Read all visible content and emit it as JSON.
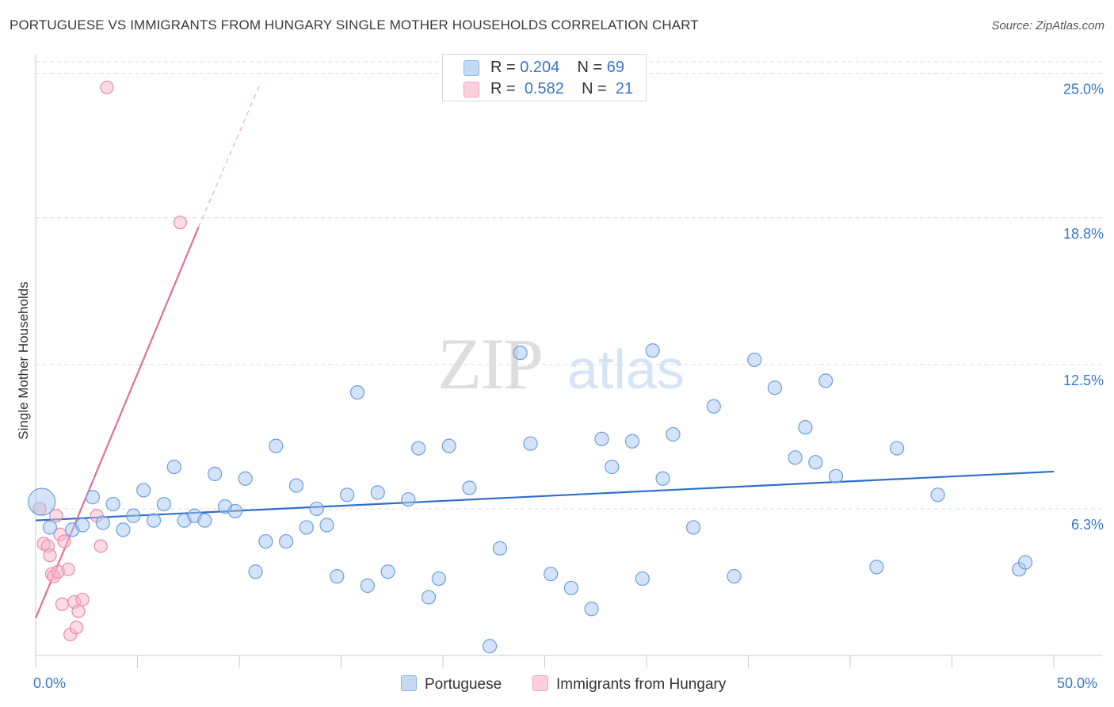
{
  "title": "PORTUGUESE VS IMMIGRANTS FROM HUNGARY SINGLE MOTHER HOUSEHOLDS CORRELATION CHART",
  "source": "Source: ZipAtlas.com",
  "watermark": {
    "zip": "ZIP",
    "atlas": "atlas"
  },
  "legend": {
    "portuguese": {
      "r_label": "R =",
      "r_value": "0.204",
      "n_label": "N =",
      "n_value": "69"
    },
    "hungary": {
      "r_label": "R =",
      "r_value": "0.582",
      "n_label": "N =",
      "n_value": "21"
    }
  },
  "colors": {
    "blue_fill": "#a9c8ef",
    "blue_stroke": "#6c9fdc",
    "blue_line": "#2f6fcc",
    "pink_fill": "#f7b8cb",
    "pink_stroke": "#ea8aa8",
    "pink_line": "#e0709a",
    "tick_label": "#3a78c9",
    "grid": "#dddddd"
  },
  "chart_data": {
    "type": "scatter",
    "title": "PORTUGUESE VS IMMIGRANTS FROM HUNGARY SINGLE MOTHER HOUSEHOLDS CORRELATION CHART",
    "xlabel": "",
    "ylabel": "Single Mother Households",
    "xlim": [
      0,
      50
    ],
    "ylim": [
      0,
      25.5
    ],
    "x_tick_labels": [
      {
        "value": 0,
        "label": "0.0%"
      },
      {
        "value": 50,
        "label": "50.0%"
      }
    ],
    "y_tick_labels": [
      {
        "value": 6.3,
        "label": "6.3%"
      },
      {
        "value": 12.5,
        "label": "12.5%"
      },
      {
        "value": 18.8,
        "label": "18.8%"
      },
      {
        "value": 25.0,
        "label": "25.0%"
      }
    ],
    "grid": true,
    "series": [
      {
        "name": "Portuguese",
        "color": "blue",
        "trend": {
          "x": [
            0,
            50
          ],
          "y": [
            5.8,
            7.9
          ],
          "dashed_extension": false
        },
        "points": [
          [
            0.3,
            6.6,
            "large"
          ],
          [
            0.7,
            5.5
          ],
          [
            1.8,
            5.4
          ],
          [
            2.3,
            5.6
          ],
          [
            2.8,
            6.8
          ],
          [
            3.3,
            5.7
          ],
          [
            3.8,
            6.5
          ],
          [
            4.3,
            5.4
          ],
          [
            4.8,
            6.0
          ],
          [
            5.3,
            7.1
          ],
          [
            5.8,
            5.8
          ],
          [
            6.3,
            6.5
          ],
          [
            6.8,
            8.1
          ],
          [
            7.3,
            5.8
          ],
          [
            7.8,
            6.0
          ],
          [
            8.3,
            5.8
          ],
          [
            8.8,
            7.8
          ],
          [
            9.3,
            6.4
          ],
          [
            9.8,
            6.2
          ],
          [
            10.3,
            7.6
          ],
          [
            10.8,
            3.6
          ],
          [
            11.3,
            4.9
          ],
          [
            11.8,
            9.0
          ],
          [
            12.3,
            4.9
          ],
          [
            12.8,
            7.3
          ],
          [
            13.3,
            5.5
          ],
          [
            13.8,
            6.3
          ],
          [
            14.3,
            5.6
          ],
          [
            14.8,
            3.4
          ],
          [
            15.3,
            6.9
          ],
          [
            15.8,
            11.3
          ],
          [
            16.3,
            3.0
          ],
          [
            16.8,
            7.0
          ],
          [
            17.3,
            3.6
          ],
          [
            18.3,
            6.7
          ],
          [
            18.8,
            8.9
          ],
          [
            19.3,
            2.5
          ],
          [
            19.8,
            3.3
          ],
          [
            20.3,
            9.0
          ],
          [
            21.3,
            7.2
          ],
          [
            22.3,
            0.4
          ],
          [
            22.8,
            4.6
          ],
          [
            23.8,
            13.0
          ],
          [
            24.3,
            9.1
          ],
          [
            25.3,
            3.5
          ],
          [
            26.3,
            2.9
          ],
          [
            27.3,
            2.0
          ],
          [
            27.8,
            9.3
          ],
          [
            28.3,
            8.1
          ],
          [
            29.3,
            9.2
          ],
          [
            29.8,
            3.3
          ],
          [
            30.3,
            13.1
          ],
          [
            30.8,
            7.6
          ],
          [
            31.3,
            9.5
          ],
          [
            32.3,
            5.5
          ],
          [
            33.3,
            10.7
          ],
          [
            34.3,
            3.4
          ],
          [
            35.3,
            12.7
          ],
          [
            36.3,
            11.5
          ],
          [
            37.3,
            8.5
          ],
          [
            37.8,
            9.8
          ],
          [
            38.3,
            8.3
          ],
          [
            38.8,
            11.8
          ],
          [
            39.3,
            7.7
          ],
          [
            41.3,
            3.8
          ],
          [
            42.3,
            8.9
          ],
          [
            44.3,
            6.9
          ],
          [
            48.3,
            3.7
          ],
          [
            48.6,
            4.0
          ]
        ]
      },
      {
        "name": "Immigrants from Hungary",
        "color": "pink",
        "trend": {
          "x": [
            0,
            8.0
          ],
          "y": [
            1.6,
            18.4
          ],
          "dashed_extension": {
            "x": [
              8.0,
              11.0
            ],
            "y": [
              18.4,
              24.5
            ]
          }
        },
        "points": [
          [
            3.5,
            24.4
          ],
          [
            7.1,
            18.6
          ],
          [
            0.2,
            6.3
          ],
          [
            0.4,
            4.8
          ],
          [
            0.6,
            4.7
          ],
          [
            0.7,
            4.3
          ],
          [
            0.8,
            3.5
          ],
          [
            0.9,
            3.4
          ],
          [
            1.0,
            6.0
          ],
          [
            1.1,
            3.6
          ],
          [
            1.2,
            5.2
          ],
          [
            1.3,
            2.2
          ],
          [
            1.4,
            4.9
          ],
          [
            1.6,
            3.7
          ],
          [
            1.7,
            0.9
          ],
          [
            1.9,
            2.3
          ],
          [
            2.0,
            1.2
          ],
          [
            2.1,
            1.9
          ],
          [
            2.3,
            2.4
          ],
          [
            3.0,
            6.0
          ],
          [
            3.2,
            4.7
          ]
        ]
      }
    ]
  },
  "bottom_legend": {
    "portuguese": "Portuguese",
    "hungary": "Immigrants from Hungary"
  }
}
